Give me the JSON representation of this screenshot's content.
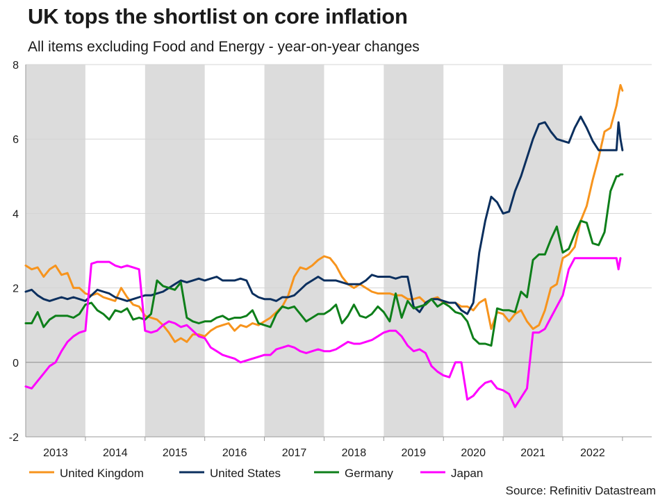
{
  "title": "UK tops the shortlist on core inflation",
  "subtitle": "All items excluding Food and Energy - year-on-year changes",
  "source": "Source: Refinitiv Datastream",
  "chart_data": {
    "type": "line",
    "title": "UK tops the shortlist on core inflation",
    "subtitle": "All items excluding Food and Energy - year-on-year changes",
    "xlabel": "",
    "ylabel": "",
    "ylim": [
      -2,
      8
    ],
    "yticks": [
      -2,
      0,
      2,
      4,
      6,
      8
    ],
    "xlim": [
      2012.5,
      2022.5
    ],
    "year_labels": [
      "2013",
      "2014",
      "2015",
      "2016",
      "2017",
      "2018",
      "2019",
      "2020",
      "2021",
      "2022"
    ],
    "shaded_years": [
      2013,
      2015,
      2017,
      2019,
      2021
    ],
    "legend_position": "bottom",
    "series": [
      {
        "name": "United Kingdom",
        "color": "#f7941d",
        "x": [
          2012.5,
          2012.6,
          2012.7,
          2012.8,
          2012.9,
          2013.0,
          2013.1,
          2013.2,
          2013.3,
          2013.4,
          2013.5,
          2013.6,
          2013.7,
          2013.8,
          2013.9,
          2014.0,
          2014.1,
          2014.2,
          2014.3,
          2014.4,
          2014.5,
          2014.6,
          2014.7,
          2014.8,
          2014.9,
          2015.0,
          2015.1,
          2015.2,
          2015.3,
          2015.4,
          2015.5,
          2015.6,
          2015.7,
          2015.8,
          2015.9,
          2016.0,
          2016.1,
          2016.2,
          2016.3,
          2016.4,
          2016.5,
          2016.6,
          2016.7,
          2016.8,
          2016.9,
          2017.0,
          2017.1,
          2017.2,
          2017.3,
          2017.4,
          2017.5,
          2017.6,
          2017.7,
          2017.8,
          2017.9,
          2018.0,
          2018.1,
          2018.2,
          2018.3,
          2018.4,
          2018.5,
          2018.6,
          2018.7,
          2018.8,
          2018.9,
          2019.0,
          2019.1,
          2019.2,
          2019.3,
          2019.4,
          2019.5,
          2019.6,
          2019.7,
          2019.8,
          2019.9,
          2020.0,
          2020.1,
          2020.2,
          2020.3,
          2020.4,
          2020.5,
          2020.6,
          2020.7,
          2020.8,
          2020.9,
          2021.0,
          2021.1,
          2021.2,
          2021.3,
          2021.4,
          2021.5,
          2021.6,
          2021.7,
          2021.8,
          2021.9,
          2022.0,
          2022.1,
          2022.2,
          2022.3,
          2022.4
        ],
        "values": [
          2.6,
          2.5,
          2.55,
          2.3,
          2.5,
          2.6,
          2.35,
          2.4,
          2.0,
          2.0,
          1.85,
          1.8,
          1.85,
          1.75,
          1.7,
          1.65,
          2.0,
          1.75,
          1.55,
          1.5,
          1.25,
          1.2,
          1.15,
          1.0,
          0.8,
          0.55,
          0.65,
          0.55,
          0.75,
          0.75,
          0.7,
          0.85,
          0.95,
          1.0,
          1.05,
          0.85,
          1.0,
          0.95,
          1.05,
          1.0,
          1.1,
          1.2,
          1.35,
          1.5,
          1.8,
          2.3,
          2.55,
          2.5,
          2.6,
          2.75,
          2.85,
          2.8,
          2.6,
          2.3,
          2.1,
          2.0,
          2.1,
          2.0,
          1.9,
          1.85,
          1.85,
          1.85,
          1.8,
          1.8,
          1.7,
          1.7,
          1.75,
          1.6,
          1.7,
          1.75,
          1.6,
          1.6,
          1.6,
          1.5,
          1.5,
          1.4,
          1.6,
          1.7,
          0.9,
          1.35,
          1.3,
          1.1,
          1.3,
          1.4,
          1.1,
          0.9,
          1.0,
          1.4,
          2.0,
          2.1,
          2.8,
          2.9,
          3.1,
          3.8,
          4.2,
          4.9,
          5.5,
          6.2,
          6.3,
          6.9
        ],
        "end_values": [
          7.2,
          7.45,
          7.3
        ]
      },
      {
        "name": "United States",
        "color": "#0b2f5e",
        "x": [
          2012.5,
          2012.6,
          2012.7,
          2012.8,
          2012.9,
          2013.0,
          2013.1,
          2013.2,
          2013.3,
          2013.4,
          2013.5,
          2013.6,
          2013.7,
          2013.8,
          2013.9,
          2014.0,
          2014.1,
          2014.2,
          2014.3,
          2014.4,
          2014.5,
          2014.6,
          2014.7,
          2014.8,
          2014.9,
          2015.0,
          2015.1,
          2015.2,
          2015.3,
          2015.4,
          2015.5,
          2015.6,
          2015.7,
          2015.8,
          2015.9,
          2016.0,
          2016.1,
          2016.2,
          2016.3,
          2016.4,
          2016.5,
          2016.6,
          2016.7,
          2016.8,
          2016.9,
          2017.0,
          2017.1,
          2017.2,
          2017.3,
          2017.4,
          2017.5,
          2017.6,
          2017.7,
          2017.8,
          2017.9,
          2018.0,
          2018.1,
          2018.2,
          2018.3,
          2018.4,
          2018.5,
          2018.6,
          2018.7,
          2018.8,
          2018.9,
          2019.0,
          2019.1,
          2019.2,
          2019.3,
          2019.4,
          2019.5,
          2019.6,
          2019.7,
          2019.8,
          2019.9,
          2020.0,
          2020.1,
          2020.2,
          2020.3,
          2020.4,
          2020.5,
          2020.6,
          2020.7,
          2020.8,
          2020.9,
          2021.0,
          2021.1,
          2021.2,
          2021.3,
          2021.4,
          2021.5,
          2021.6,
          2021.7,
          2021.8,
          2021.9,
          2022.0,
          2022.1,
          2022.2,
          2022.3,
          2022.4
        ],
        "values": [
          1.9,
          1.95,
          1.8,
          1.7,
          1.65,
          1.7,
          1.75,
          1.7,
          1.75,
          1.7,
          1.65,
          1.8,
          1.95,
          1.9,
          1.85,
          1.75,
          1.7,
          1.65,
          1.7,
          1.75,
          1.8,
          1.8,
          1.85,
          1.9,
          2.0,
          2.1,
          2.2,
          2.15,
          2.2,
          2.25,
          2.2,
          2.25,
          2.3,
          2.2,
          2.2,
          2.2,
          2.25,
          2.2,
          1.85,
          1.75,
          1.7,
          1.7,
          1.65,
          1.75,
          1.75,
          1.8,
          1.95,
          2.1,
          2.2,
          2.3,
          2.2,
          2.2,
          2.2,
          2.15,
          2.1,
          2.1,
          2.1,
          2.2,
          2.35,
          2.3,
          2.3,
          2.3,
          2.25,
          2.3,
          2.3,
          1.5,
          1.35,
          1.6,
          1.7,
          1.7,
          1.65,
          1.6,
          1.6,
          1.4,
          1.3,
          1.6,
          2.95,
          3.8,
          4.45,
          4.3,
          4.0,
          4.05,
          4.6,
          5.0,
          5.5,
          6.0,
          6.4,
          6.45,
          6.2,
          6.0,
          5.95,
          5.9,
          6.3,
          6.6,
          6.3,
          5.95,
          5.7,
          5.7,
          5.7,
          5.7
        ],
        "end_values": [
          6.45,
          6.0,
          5.7
        ]
      },
      {
        "name": "Germany",
        "color": "#0e7f1a",
        "x": [
          2012.5,
          2012.6,
          2012.7,
          2012.8,
          2012.9,
          2013.0,
          2013.1,
          2013.2,
          2013.3,
          2013.4,
          2013.5,
          2013.6,
          2013.7,
          2013.8,
          2013.9,
          2014.0,
          2014.1,
          2014.2,
          2014.3,
          2014.4,
          2014.5,
          2014.6,
          2014.7,
          2014.8,
          2014.9,
          2015.0,
          2015.1,
          2015.2,
          2015.3,
          2015.4,
          2015.5,
          2015.6,
          2015.7,
          2015.8,
          2015.9,
          2016.0,
          2016.1,
          2016.2,
          2016.3,
          2016.4,
          2016.5,
          2016.6,
          2016.7,
          2016.8,
          2016.9,
          2017.0,
          2017.1,
          2017.2,
          2017.3,
          2017.4,
          2017.5,
          2017.6,
          2017.7,
          2017.8,
          2017.9,
          2018.0,
          2018.1,
          2018.2,
          2018.3,
          2018.4,
          2018.5,
          2018.6,
          2018.7,
          2018.8,
          2018.9,
          2019.0,
          2019.1,
          2019.2,
          2019.3,
          2019.4,
          2019.5,
          2019.6,
          2019.7,
          2019.8,
          2019.9,
          2020.0,
          2020.1,
          2020.2,
          2020.3,
          2020.4,
          2020.5,
          2020.6,
          2020.7,
          2020.8,
          2020.9,
          2021.0,
          2021.1,
          2021.2,
          2021.3,
          2021.4,
          2021.5,
          2021.6,
          2021.7,
          2021.8,
          2021.9,
          2022.0,
          2022.1,
          2022.2,
          2022.3,
          2022.4
        ],
        "values": [
          1.05,
          1.05,
          1.35,
          0.95,
          1.15,
          1.25,
          1.25,
          1.25,
          1.2,
          1.3,
          1.55,
          1.6,
          1.4,
          1.3,
          1.15,
          1.4,
          1.35,
          1.45,
          1.15,
          1.2,
          1.15,
          1.3,
          2.2,
          2.05,
          2.0,
          1.95,
          2.15,
          1.2,
          1.1,
          1.05,
          1.1,
          1.1,
          1.2,
          1.25,
          1.15,
          1.2,
          1.2,
          1.25,
          1.4,
          1.05,
          1.0,
          0.95,
          1.3,
          1.5,
          1.45,
          1.5,
          1.3,
          1.1,
          1.2,
          1.3,
          1.3,
          1.4,
          1.55,
          1.05,
          1.25,
          1.55,
          1.25,
          1.2,
          1.3,
          1.5,
          1.35,
          1.1,
          1.85,
          1.2,
          1.65,
          1.45,
          1.5,
          1.55,
          1.7,
          1.5,
          1.6,
          1.5,
          1.35,
          1.3,
          1.1,
          0.65,
          0.5,
          0.5,
          0.45,
          1.45,
          1.4,
          1.4,
          1.35,
          1.9,
          1.75,
          2.75,
          2.9,
          2.9,
          3.3,
          3.65,
          2.95,
          3.05,
          3.45,
          3.8,
          3.75,
          3.2,
          3.15,
          3.5,
          4.6,
          5.0
        ],
        "end_values": [
          5.0,
          5.05,
          5.05
        ]
      },
      {
        "name": "Japan",
        "color": "#ff00ff",
        "x": [
          2012.5,
          2012.6,
          2012.7,
          2012.8,
          2012.9,
          2013.0,
          2013.1,
          2013.2,
          2013.3,
          2013.4,
          2013.5,
          2013.6,
          2013.7,
          2013.8,
          2013.9,
          2014.0,
          2014.1,
          2014.2,
          2014.3,
          2014.4,
          2014.5,
          2014.6,
          2014.7,
          2014.8,
          2014.9,
          2015.0,
          2015.1,
          2015.2,
          2015.3,
          2015.4,
          2015.5,
          2015.6,
          2015.7,
          2015.8,
          2015.9,
          2016.0,
          2016.1,
          2016.2,
          2016.3,
          2016.4,
          2016.5,
          2016.6,
          2016.7,
          2016.8,
          2016.9,
          2017.0,
          2017.1,
          2017.2,
          2017.3,
          2017.4,
          2017.5,
          2017.6,
          2017.7,
          2017.8,
          2017.9,
          2018.0,
          2018.1,
          2018.2,
          2018.3,
          2018.4,
          2018.5,
          2018.6,
          2018.7,
          2018.8,
          2018.9,
          2019.0,
          2019.1,
          2019.2,
          2019.3,
          2019.4,
          2019.5,
          2019.6,
          2019.7,
          2019.8,
          2019.9,
          2020.0,
          2020.1,
          2020.2,
          2020.3,
          2020.4,
          2020.5,
          2020.6,
          2020.7,
          2020.8,
          2020.9,
          2021.0,
          2021.1,
          2021.2,
          2021.3,
          2021.4,
          2021.5,
          2021.6,
          2021.7,
          2021.8,
          2021.9,
          2022.0,
          2022.1,
          2022.2,
          2022.3,
          2022.4
        ],
        "values": [
          -0.65,
          -0.7,
          -0.5,
          -0.3,
          -0.1,
          0.0,
          0.3,
          0.55,
          0.7,
          0.8,
          0.85,
          2.65,
          2.7,
          2.7,
          2.7,
          2.6,
          2.55,
          2.6,
          2.55,
          2.5,
          0.85,
          0.8,
          0.85,
          1.0,
          1.1,
          1.05,
          0.95,
          1.0,
          0.85,
          0.7,
          0.65,
          0.4,
          0.3,
          0.2,
          0.15,
          0.1,
          0.0,
          0.05,
          0.1,
          0.15,
          0.2,
          0.2,
          0.35,
          0.4,
          0.45,
          0.4,
          0.3,
          0.25,
          0.3,
          0.35,
          0.3,
          0.3,
          0.35,
          0.45,
          0.55,
          0.5,
          0.5,
          0.55,
          0.6,
          0.7,
          0.8,
          0.85,
          0.85,
          0.7,
          0.45,
          0.3,
          0.35,
          0.25,
          -0.1,
          -0.25,
          -0.35,
          -0.4,
          0.0,
          0.0,
          -1.0,
          -0.9,
          -0.7,
          -0.55,
          -0.5,
          -0.7,
          -0.75,
          -0.85,
          -1.2,
          -0.95,
          -0.7,
          0.8,
          0.8,
          0.9,
          1.2,
          1.5,
          1.8,
          2.5,
          2.8,
          2.8,
          2.8,
          2.8,
          2.8,
          2.8,
          2.8,
          2.8
        ],
        "end_values": [
          2.5,
          2.8
        ]
      }
    ]
  }
}
